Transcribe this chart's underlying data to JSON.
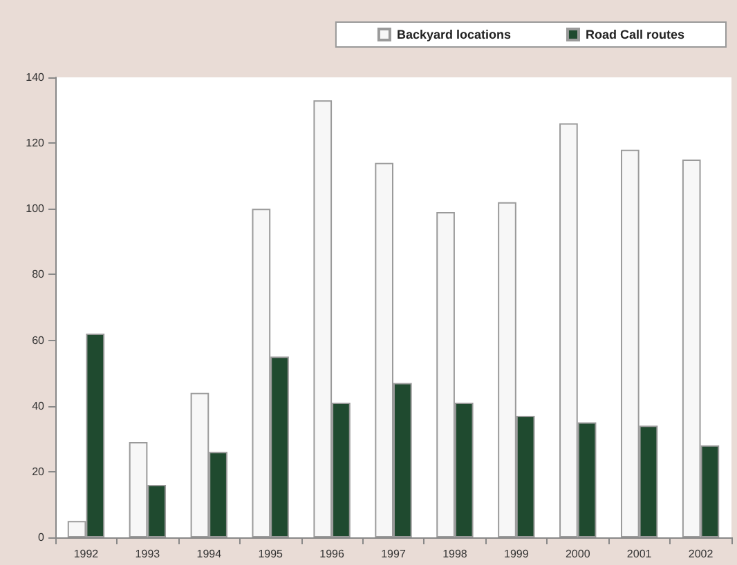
{
  "chart_data": {
    "type": "bar",
    "categories": [
      "1992",
      "1993",
      "1994",
      "1995",
      "1996",
      "1997",
      "1998",
      "1999",
      "2000",
      "2001",
      "2002"
    ],
    "series": [
      {
        "name": "Backyard locations",
        "color": "#f7f7f7",
        "values": [
          5,
          29,
          44,
          100,
          133,
          114,
          99,
          102,
          126,
          118,
          115
        ]
      },
      {
        "name": "Road Call routes",
        "color": "#1f4a2f",
        "values": [
          62,
          16,
          26,
          55,
          41,
          47,
          41,
          37,
          35,
          34,
          28
        ]
      }
    ],
    "ylim": [
      0,
      140
    ],
    "yticks": [
      0,
      20,
      40,
      60,
      80,
      100,
      120,
      140
    ],
    "grid": false,
    "legend": "top right"
  }
}
